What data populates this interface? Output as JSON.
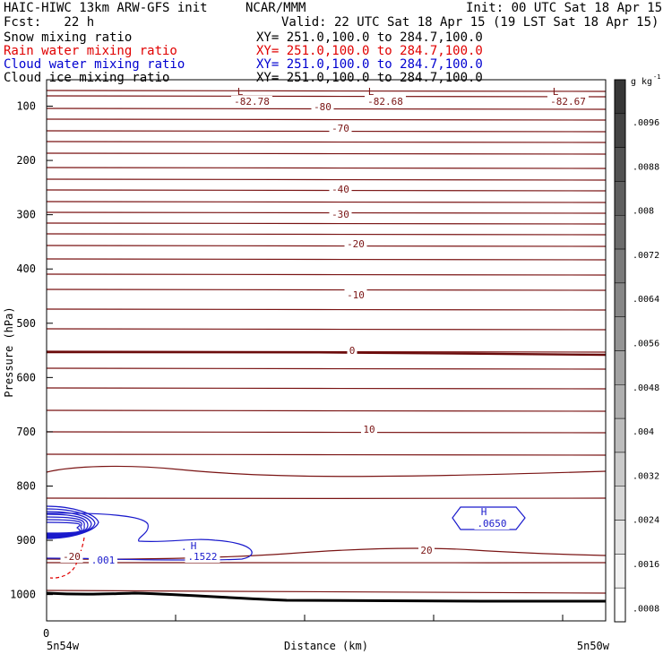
{
  "header": {
    "title": "HAIC-HIWC 13km ARW-GFS init",
    "org": "NCAR/MMM",
    "fcst": "Fcst:   22 h",
    "init": "Init: 00 UTC Sat 18 Apr 15",
    "valid": "Valid: 22 UTC Sat 18 Apr 15 (19 LST Sat 18 Apr 15)",
    "xy": "XY= 251.0,100.0 to 284.7,100.0"
  },
  "fields": [
    {
      "label": "Snow mixing ratio",
      "color": "#000000"
    },
    {
      "label": "Rain water mixing ratio",
      "color": "#e00000"
    },
    {
      "label": "Cloud water mixing ratio",
      "color": "#0000d0"
    },
    {
      "label": "Cloud ice mixing ratio",
      "color": "#000000"
    }
  ],
  "colorbar": {
    "unit": "g kg",
    "unit_exp": "-1",
    "ticks": [
      ".0096",
      ".0088",
      ".008",
      ".0072",
      ".0064",
      ".0056",
      ".0048",
      ".004",
      ".0032",
      ".0024",
      ".0016",
      ".0008"
    ]
  },
  "chart_data": {
    "type": "contour",
    "xlabel": "Distance (km)",
    "ylabel": "Pressure (hPa)",
    "x_tick": "0",
    "x_left_label": "5n54w",
    "x_right_label": "5n50w",
    "y_ticks": [
      100,
      200,
      300,
      400,
      500,
      600,
      700,
      800,
      900,
      1000
    ],
    "ylim": [
      1050,
      75
    ],
    "temperature_labels": [
      "-80",
      "-70",
      "-40",
      "-30",
      "-20",
      "-10",
      "0",
      "10",
      "20",
      "-20"
    ],
    "lows": [
      {
        "mark": "L",
        "value": "-82.78"
      },
      {
        "mark": "L",
        "value": "-82.68"
      },
      {
        "mark": "L",
        "value": "-82.67"
      }
    ],
    "cloud_water_maxima": [
      {
        "mark": "H",
        "value": ".1522"
      },
      {
        "mark": "H",
        "value": ".0650"
      }
    ],
    "rain_label": ".001"
  }
}
